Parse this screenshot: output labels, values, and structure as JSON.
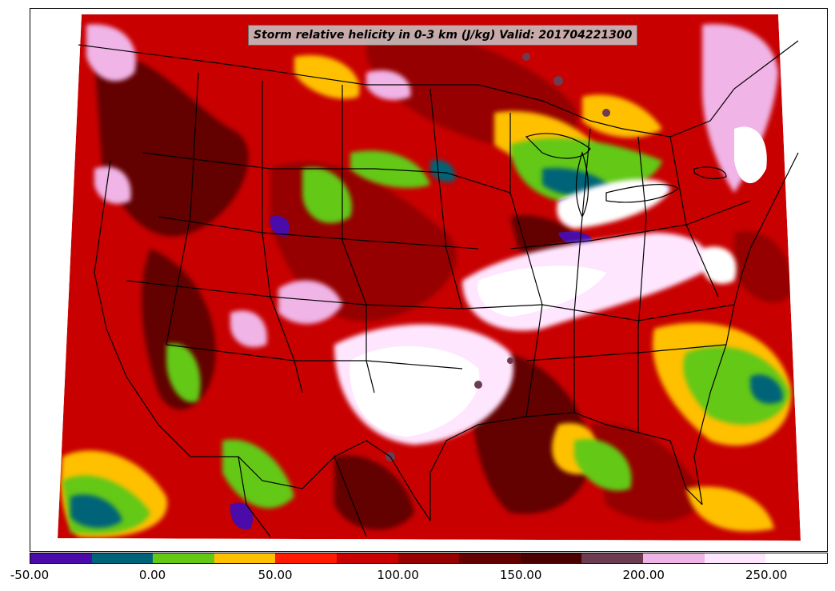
{
  "title": "Storm relative helicity in 0-3 km (J/kg) Valid: 201704221300",
  "colorbar": {
    "colors": [
      "#4b0ba8",
      "#006478",
      "#64c814",
      "#ffc000",
      "#ff1a00",
      "#c80000",
      "#960000",
      "#640000",
      "#4a0000",
      "#6e3c50",
      "#f0b4e6",
      "#ffe6ff",
      "#ffffff"
    ],
    "tick_labels": [
      "-50.00",
      "0.00",
      "50.00",
      "100.00",
      "150.00",
      "200.00",
      "250.00"
    ]
  },
  "map": {
    "land_background": "#c80000",
    "boundary_color": "#000000"
  }
}
